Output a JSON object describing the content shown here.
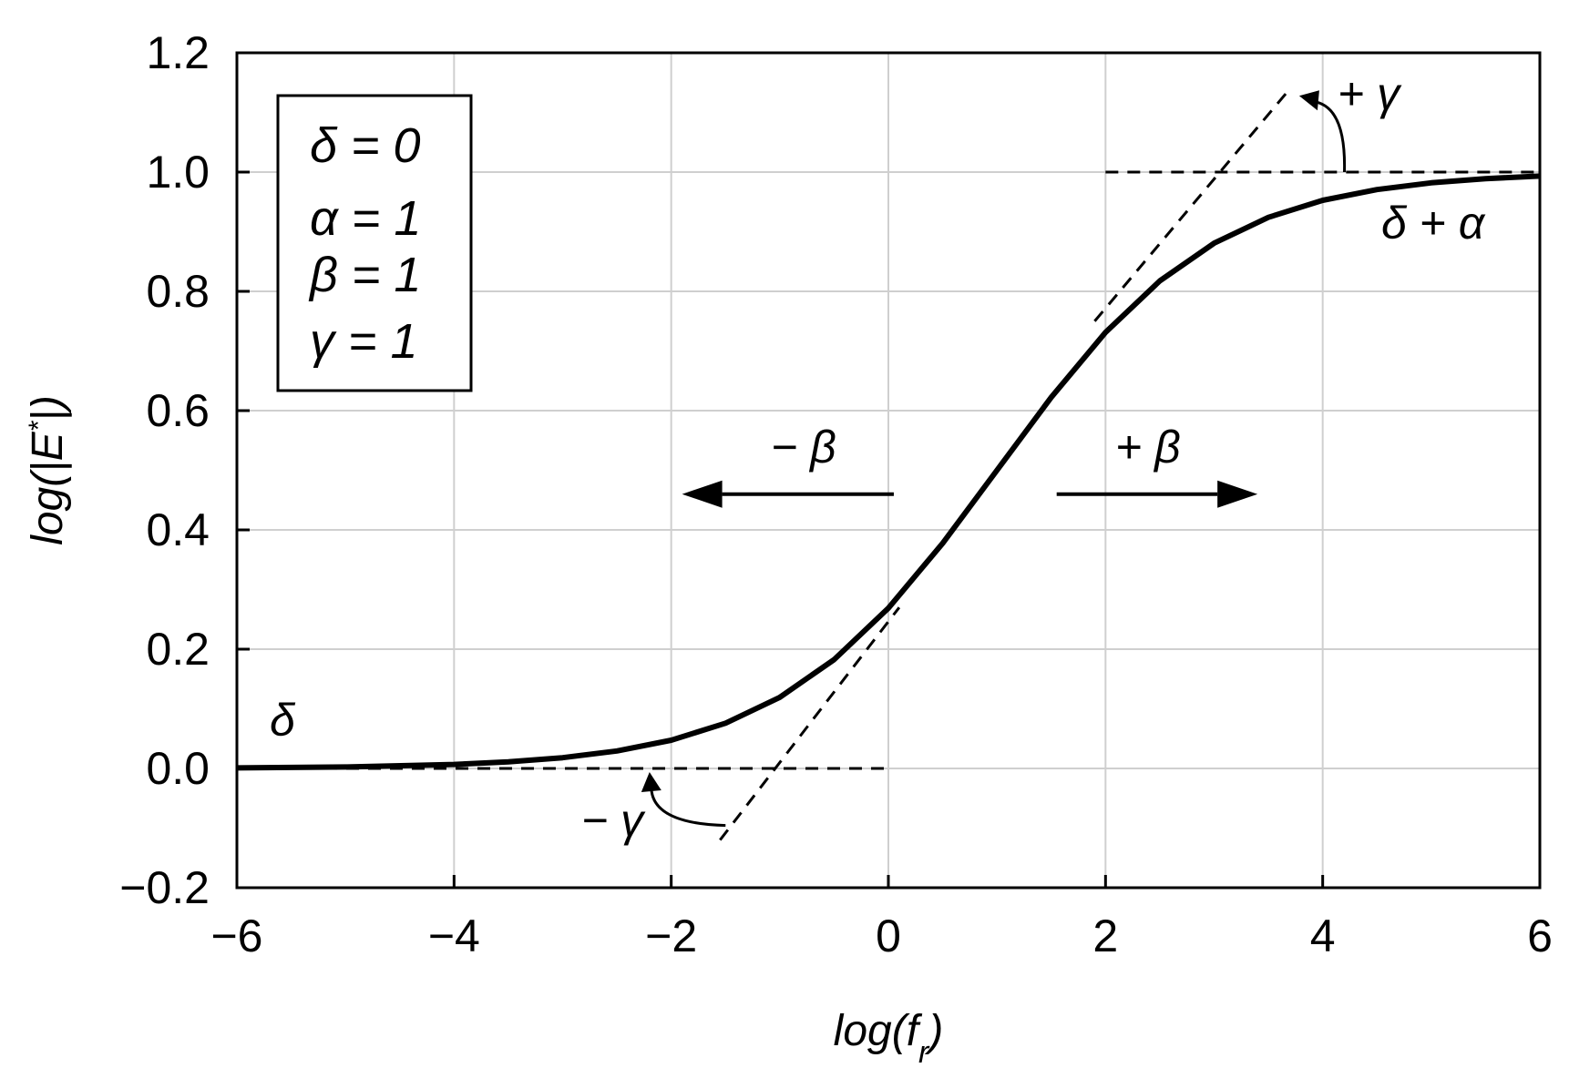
{
  "chart_data": {
    "type": "line",
    "xlabel_main": "log(f",
    "xlabel_sub": "r",
    "xlabel_end": ")",
    "ylabel": "log(|E*|)",
    "ylabel_pre": "log(|E",
    "ylabel_sup": "*",
    "ylabel_post": "|)",
    "xlim": [
      -6,
      6
    ],
    "ylim": [
      -0.2,
      1.2
    ],
    "x_ticks": [
      -6,
      -4,
      -2,
      0,
      2,
      4,
      6
    ],
    "x_tick_labels": [
      "−6",
      "−4",
      "−2",
      "0",
      "2",
      "4",
      "6"
    ],
    "y_ticks": [
      -0.2,
      0.0,
      0.2,
      0.4,
      0.6,
      0.8,
      1.0,
      1.2
    ],
    "y_tick_labels": [
      "−0.2",
      "0.0",
      "0.2",
      "0.4",
      "0.6",
      "0.8",
      "1.0",
      "1.2"
    ],
    "grid": true,
    "parameters": {
      "delta": 0,
      "alpha": 1,
      "beta": 1,
      "gamma": 1
    },
    "legend": [
      "δ = 0",
      "α = 1",
      "β = 1",
      "γ = 1"
    ],
    "legend_placement": "top-left",
    "curve": {
      "x": [
        -6,
        -5,
        -4,
        -3.5,
        -3,
        -2.5,
        -2,
        -1.5,
        -1,
        -0.5,
        0,
        0.5,
        1,
        1.5,
        2,
        2.5,
        3,
        3.5,
        4,
        4.5,
        5,
        5.5,
        6
      ],
      "y": [
        0.0009,
        0.0025,
        0.0067,
        0.011,
        0.018,
        0.0293,
        0.0474,
        0.0759,
        0.1192,
        0.1824,
        0.2689,
        0.3775,
        0.5,
        0.6225,
        0.7311,
        0.8176,
        0.8808,
        0.9241,
        0.9526,
        0.9707,
        0.982,
        0.989,
        0.9933
      ]
    },
    "reference_lines": {
      "lower_asymptote": {
        "x": [
          -6,
          0
        ],
        "y": [
          0,
          0
        ]
      },
      "upper_asymptote": {
        "x": [
          2,
          6
        ],
        "y": [
          1,
          1
        ]
      },
      "upper_tangent": {
        "x": [
          1.9,
          3.7
        ],
        "y": [
          0.75,
          1.14
        ]
      },
      "lower_tangent": {
        "x": [
          -1.55,
          0.1
        ],
        "y": [
          -0.12,
          0.27
        ]
      }
    },
    "annotations": {
      "delta_label": "δ",
      "delta_alpha_label": "δ + α",
      "plus_gamma": "+ γ",
      "minus_gamma": "− γ",
      "minus_beta": "− β",
      "plus_beta": "+ β"
    },
    "beta_arrows": {
      "left": {
        "x_from": 0.05,
        "x_to": -1.9,
        "y": 0.46
      },
      "right": {
        "x_from": 1.55,
        "x_to": 3.4,
        "y": 0.46
      }
    }
  }
}
